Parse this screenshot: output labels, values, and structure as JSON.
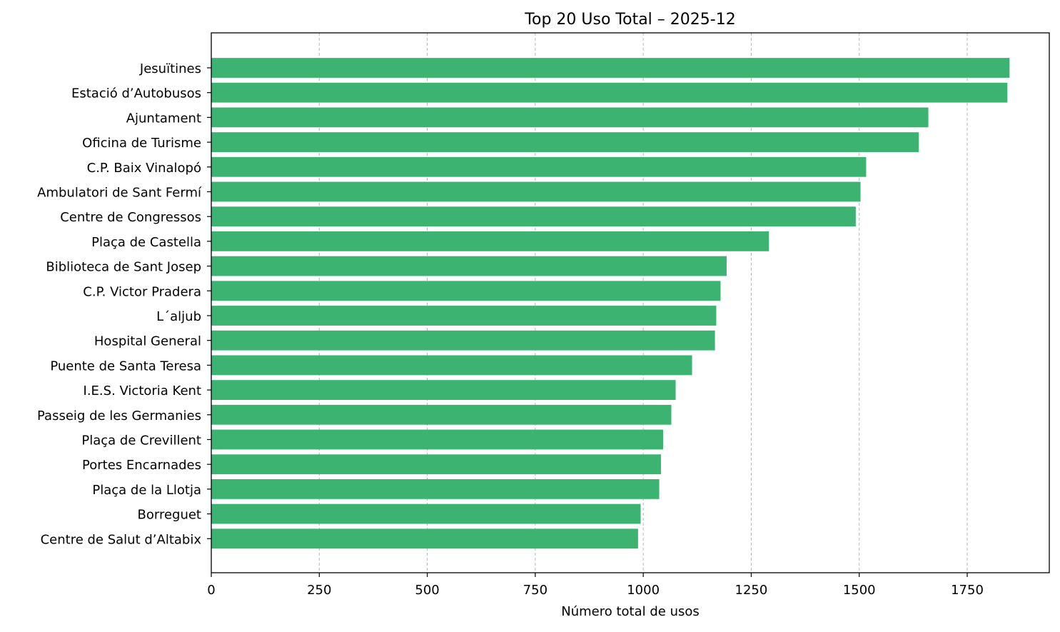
{
  "chart_data": {
    "type": "bar",
    "orientation": "horizontal",
    "title": "Top 20 Uso Total – 2025-12",
    "xlabel": "Número total de usos",
    "ylabel": "",
    "xlim": [
      0,
      1940
    ],
    "xticks": [
      0,
      250,
      500,
      750,
      1000,
      1250,
      1500,
      1750
    ],
    "grid": "x-dashed",
    "bar_color": "#3cb371",
    "categories": [
      "Jesuïtines",
      "Estació d’Autobusos",
      "Ajuntament",
      "Oficina de Turisme",
      "C.P. Baix Vinalopó",
      "Ambulatori de Sant Fermí",
      "Centre de Congressos",
      "Plaça de Castella",
      "Biblioteca de Sant Josep",
      "C.P. Victor Pradera",
      "L´aljub",
      "Hospital General",
      "Puente de Santa Teresa",
      "I.E.S. Victoria Kent",
      "Passeig de les Germanies",
      "Plaça de Crevillent",
      "Portes Encarnades",
      "Plaça de la Llotja",
      "Borreguet",
      "Centre de Salut d’Altabix"
    ],
    "values": [
      1848,
      1843,
      1660,
      1638,
      1516,
      1503,
      1492,
      1291,
      1193,
      1179,
      1169,
      1166,
      1113,
      1075,
      1065,
      1046,
      1041,
      1037,
      994,
      988
    ]
  }
}
